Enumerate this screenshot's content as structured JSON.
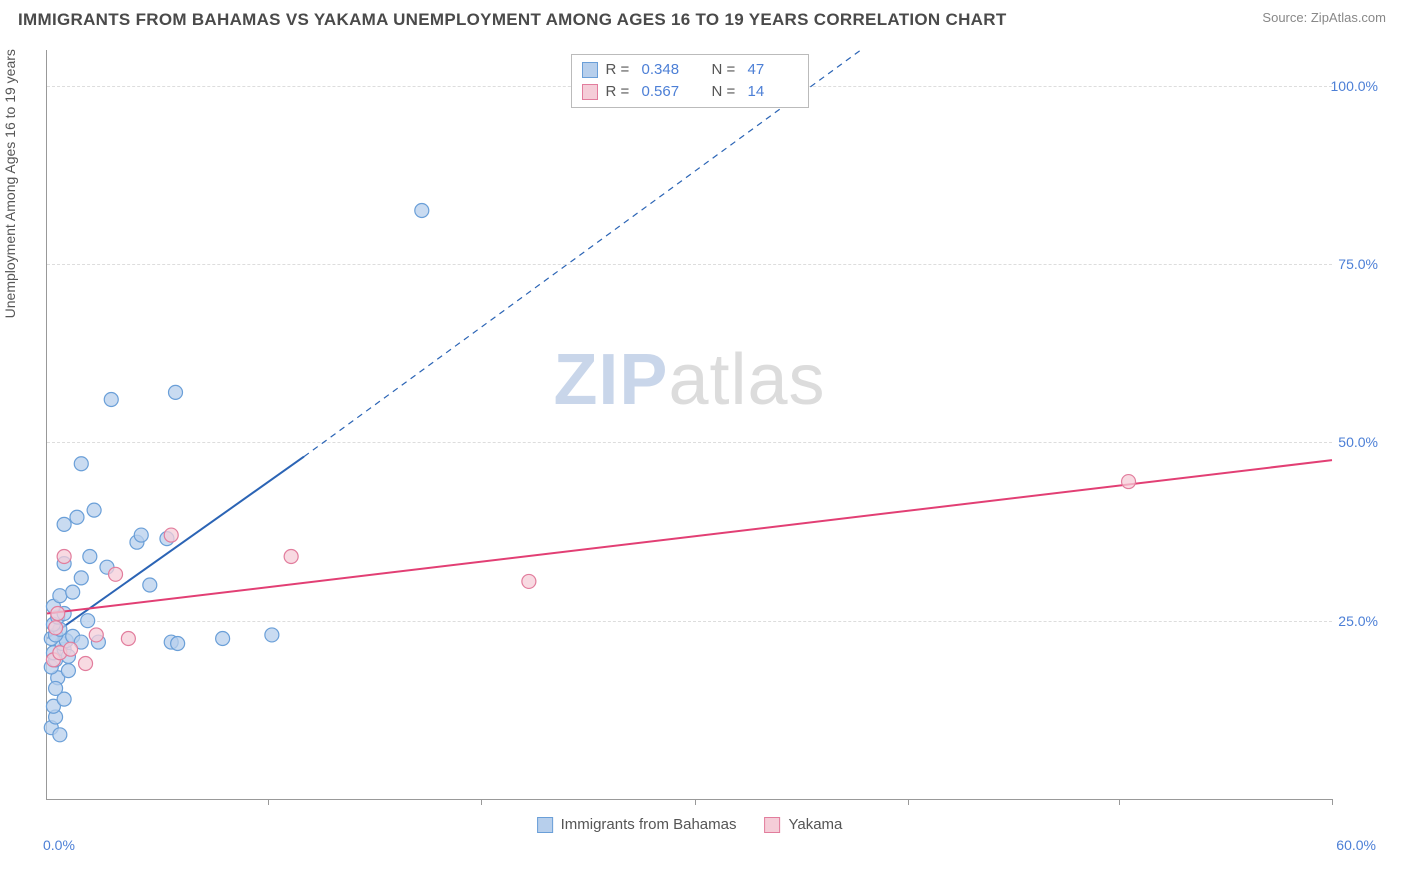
{
  "title": "IMMIGRANTS FROM BAHAMAS VS YAKAMA UNEMPLOYMENT AMONG AGES 16 TO 19 YEARS CORRELATION CHART",
  "source_label": "Source:",
  "source_name": "ZipAtlas.com",
  "watermark_a": "ZIP",
  "watermark_b": "atlas",
  "chart": {
    "type": "scatter",
    "ylabel": "Unemployment Among Ages 16 to 19 years",
    "xlim": [
      0,
      60
    ],
    "ylim": [
      0,
      105
    ],
    "x_axis_label_left": "0.0%",
    "x_axis_label_right": "60.0%",
    "y_grid": [
      {
        "val": 25,
        "label": "25.0%"
      },
      {
        "val": 50,
        "label": "50.0%"
      },
      {
        "val": 75,
        "label": "75.0%"
      },
      {
        "val": 100,
        "label": "100.0%"
      }
    ],
    "x_ticks_pct": [
      17.2,
      33.8,
      50.4,
      67.0,
      83.4,
      100
    ],
    "grid_color": "#dddddd",
    "marker_radius": 7,
    "marker_stroke_width": 1.2,
    "line_width": 2,
    "dash_pattern": "6 5",
    "series": [
      {
        "name": "Immigrants from Bahamas",
        "fill": "#b7cfec",
        "stroke": "#6a9fd8",
        "line_color": "#2b64b5",
        "reg_solid": {
          "x1": 0,
          "y1": 22.5,
          "x2": 12,
          "y2": 48
        },
        "reg_dash": {
          "x1": 12,
          "y1": 48,
          "x2": 38,
          "y2": 105
        },
        "points": [
          [
            0.2,
            10
          ],
          [
            0.4,
            11.5
          ],
          [
            0.6,
            9
          ],
          [
            0.3,
            13
          ],
          [
            0.8,
            14
          ],
          [
            0.5,
            17
          ],
          [
            0.2,
            18.5
          ],
          [
            0.4,
            19.5
          ],
          [
            0.3,
            20.5
          ],
          [
            0.8,
            21
          ],
          [
            0.7,
            21.8
          ],
          [
            0.2,
            22.5
          ],
          [
            0.9,
            22.2
          ],
          [
            0.4,
            23
          ],
          [
            0.6,
            23.8
          ],
          [
            0.3,
            24.5
          ],
          [
            1.2,
            22.8
          ],
          [
            1.6,
            22
          ],
          [
            0.5,
            25.5
          ],
          [
            1.9,
            25
          ],
          [
            0.8,
            26
          ],
          [
            0.3,
            27
          ],
          [
            2.4,
            22
          ],
          [
            0.6,
            28.5
          ],
          [
            5.8,
            22
          ],
          [
            6.1,
            21.8
          ],
          [
            1.2,
            29
          ],
          [
            8.2,
            22.5
          ],
          [
            10.5,
            23
          ],
          [
            1.6,
            31
          ],
          [
            2.8,
            32.5
          ],
          [
            2.0,
            34
          ],
          [
            4.2,
            36
          ],
          [
            4.4,
            37
          ],
          [
            0.8,
            38.5
          ],
          [
            1.4,
            39.5
          ],
          [
            2.2,
            40.5
          ],
          [
            1.6,
            47
          ],
          [
            5.6,
            36.5
          ],
          [
            4.8,
            30
          ],
          [
            3.0,
            56
          ],
          [
            6.0,
            57
          ],
          [
            0.8,
            33
          ],
          [
            17.5,
            82.5
          ],
          [
            1.0,
            20
          ],
          [
            1.0,
            18
          ],
          [
            0.4,
            15.5
          ]
        ]
      },
      {
        "name": "Yakama",
        "fill": "#f5cdd8",
        "stroke": "#e27d9d",
        "line_color": "#e23f74",
        "reg_solid": {
          "x1": 0,
          "y1": 26,
          "x2": 60,
          "y2": 47.5
        },
        "reg_dash": null,
        "points": [
          [
            0.3,
            19.5
          ],
          [
            0.6,
            20.5
          ],
          [
            1.1,
            21
          ],
          [
            0.4,
            24
          ],
          [
            1.8,
            19
          ],
          [
            2.3,
            23
          ],
          [
            0.5,
            26
          ],
          [
            3.8,
            22.5
          ],
          [
            0.8,
            34
          ],
          [
            3.2,
            31.5
          ],
          [
            5.8,
            37
          ],
          [
            11.4,
            34
          ],
          [
            22.5,
            30.5
          ],
          [
            50.5,
            44.5
          ]
        ]
      }
    ]
  },
  "stats": [
    {
      "swatch_fill": "#b7cfec",
      "swatch_stroke": "#6a9fd8",
      "r": "0.348",
      "n": "47"
    },
    {
      "swatch_fill": "#f5cdd8",
      "swatch_stroke": "#e27d9d",
      "r": "0.567",
      "n": "14"
    }
  ],
  "stat_labels": {
    "r": "R =",
    "n": "N ="
  }
}
